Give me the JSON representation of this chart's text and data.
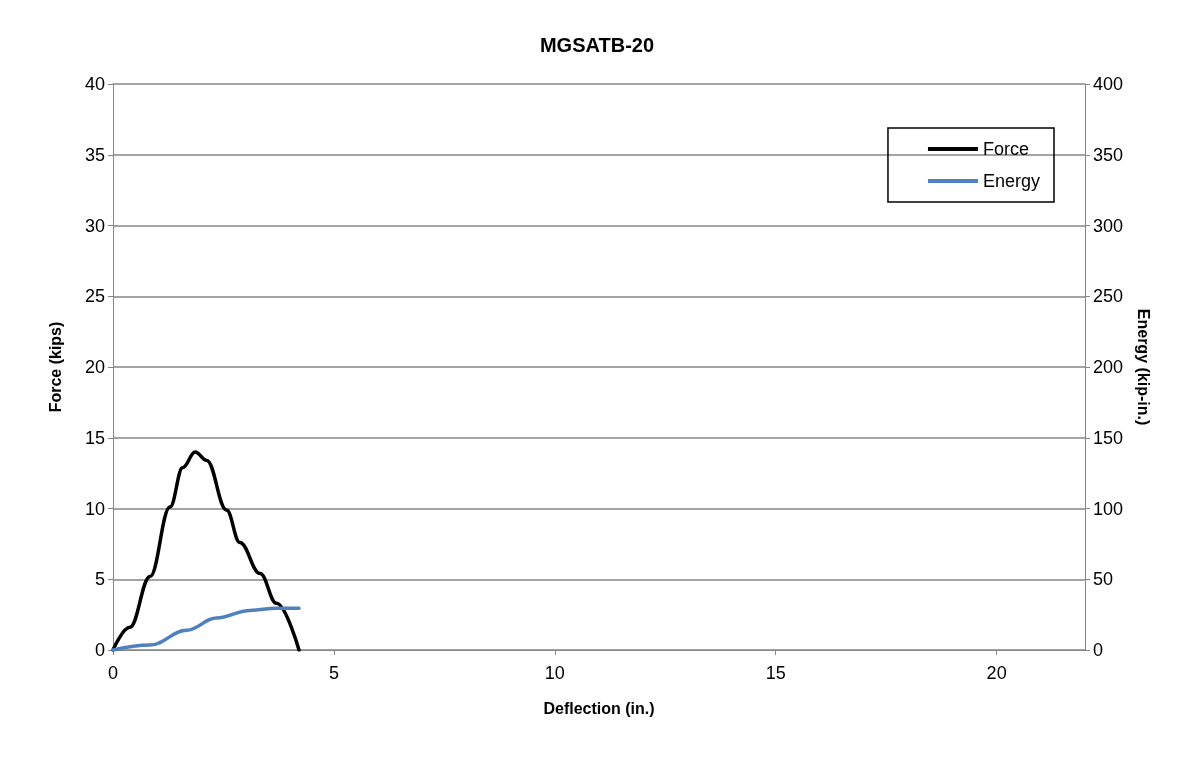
{
  "chart_data": {
    "type": "line",
    "title": "MGSATB-20",
    "xlabel": "Deflection (in.)",
    "ylabel": "Force (kips)",
    "y2label": "Energy (kip-in.)",
    "series": [
      {
        "name": "Force",
        "color": "#000000",
        "x": [
          0,
          0.38,
          0.84,
          1.29,
          1.58,
          1.86,
          2.12,
          2.57,
          2.87,
          3.33,
          3.7,
          4.21
        ],
        "values": [
          0,
          1.6,
          5.2,
          10.1,
          12.9,
          14,
          13.4,
          9.9,
          7.6,
          5.4,
          3.3,
          0
        ]
      },
      {
        "name": "Energy",
        "color": "#4f81bd",
        "axis": "y2",
        "x": [
          0,
          0.84,
          1.67,
          2.34,
          3.1,
          3.7,
          4.21
        ],
        "values": [
          0,
          3.5,
          14,
          22.6,
          28,
          29.5,
          29.5
        ]
      }
    ],
    "xlim": [
      0,
      22
    ],
    "xticks": [
      0,
      5,
      10,
      15,
      20
    ],
    "ylim": [
      0,
      40
    ],
    "yticks": [
      0,
      5,
      10,
      15,
      20,
      25,
      30,
      35,
      40
    ],
    "y2lim": [
      0,
      400
    ],
    "y2ticks": [
      0,
      50,
      100,
      150,
      200,
      250,
      300,
      350,
      400
    ],
    "grid": "y",
    "legend": "top right",
    "marker": "none",
    "line_style": "solid"
  }
}
